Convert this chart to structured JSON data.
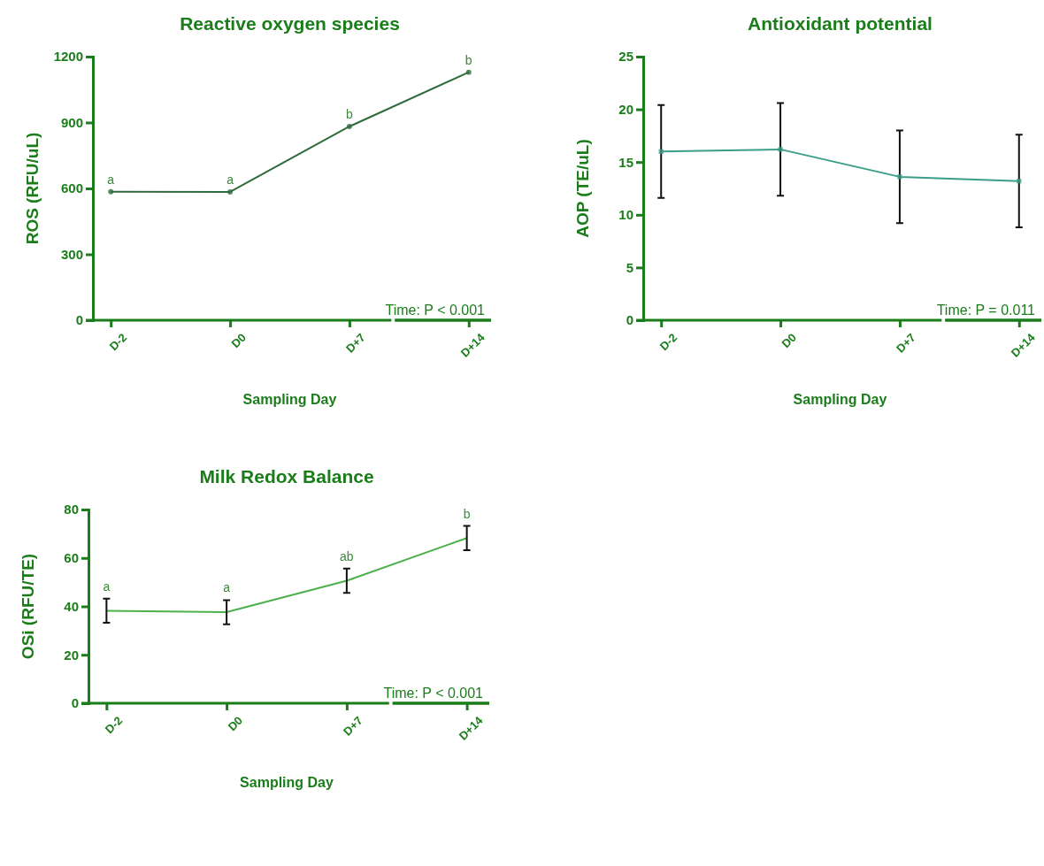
{
  "chart_data": [
    {
      "type": "line",
      "title": "Reactive oxygen species",
      "xlabel": "Sampling Day",
      "ylabel": "ROS (RFU/uL)",
      "categories": [
        "D-2",
        "D0",
        "D+7",
        "D+14"
      ],
      "ylim": [
        0,
        1200
      ],
      "yticks": [
        0,
        300,
        600,
        900,
        1200
      ],
      "marker": "circle",
      "series": [
        {
          "color": "#2f6b3c",
          "values": [
            585,
            584,
            882,
            1129
          ]
        }
      ],
      "annotations": [
        {
          "text": "a",
          "x": "D-2",
          "y": 585
        },
        {
          "text": "a",
          "x": "D0",
          "y": 584
        },
        {
          "text": "b",
          "x": "D+7",
          "y": 882
        },
        {
          "text": "b",
          "x": "D+14",
          "y": 1129
        },
        "Time: P < 0.001"
      ]
    },
    {
      "type": "line",
      "title": "Antioxidant potential",
      "xlabel": "Sampling Day",
      "ylabel": "AOP (TE/uL)",
      "categories": [
        "D-2",
        "D0",
        "D+7",
        "D+14"
      ],
      "ylim": [
        0,
        25
      ],
      "yticks": [
        0,
        5,
        10,
        15,
        20,
        25
      ],
      "marker": "square",
      "series": [
        {
          "color": "#3a9e88",
          "values": [
            16.0,
            16.2,
            13.6,
            13.2
          ],
          "errors": [
            4.4,
            4.4,
            4.4,
            4.4
          ]
        }
      ],
      "annotations": [
        "Time: P = 0.011"
      ]
    },
    {
      "type": "line",
      "title": "Milk Redox Balance",
      "xlabel": "Sampling Day",
      "ylabel": "OSi (RFU/TE)",
      "categories": [
        "D-2",
        "D0",
        "D+7",
        "D+14"
      ],
      "ylim": [
        0,
        80
      ],
      "yticks": [
        0,
        20,
        40,
        60,
        80
      ],
      "series": [
        {
          "color": "#4cb04c",
          "values": [
            38.2,
            37.6,
            50.6,
            68.2
          ],
          "errors": [
            5,
            5,
            5,
            5
          ]
        }
      ],
      "annotations": [
        {
          "text": "a",
          "x": "D-2",
          "y": 43.2
        },
        {
          "text": "a",
          "x": "D0",
          "y": 42.6
        },
        {
          "text": "ab",
          "x": "D+7",
          "y": 55.6
        },
        {
          "text": "b",
          "x": "D+14",
          "y": 73.2
        },
        "Time: P < 0.001"
      ]
    }
  ]
}
